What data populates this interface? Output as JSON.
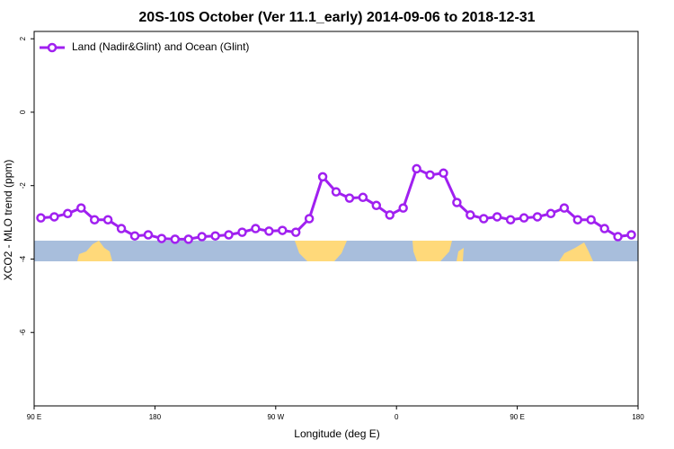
{
  "chart_data": {
    "type": "line",
    "title": "20S-10S October (Ver 11.1_early)   2014-09-06 to 2018-12-31",
    "xlabel": "Longitude (deg E)",
    "ylabel": "XCO2 - MLO trend (ppm)",
    "xlim": [
      90,
      540
    ],
    "xticks": [
      {
        "value": 90,
        "label": "90 E"
      },
      180,
      {
        "value": 270,
        "label": "90 W"
      },
      {
        "value": 360,
        "label": "0"
      },
      {
        "value": 450,
        "label": "90 E"
      },
      {
        "value": 540,
        "label": "180"
      }
    ],
    "ylim": [
      -8,
      2.2
    ],
    "yticks": [
      2,
      0,
      -2,
      -4,
      -6
    ],
    "x": [
      95,
      105,
      115,
      125,
      135,
      145,
      155,
      165,
      175,
      185,
      195,
      205,
      215,
      225,
      235,
      245,
      255,
      265,
      275,
      285,
      295,
      305,
      315,
      325,
      335,
      345,
      355,
      365,
      375,
      385,
      395,
      405,
      415,
      425,
      435,
      445,
      455,
      465,
      475,
      485,
      495,
      505,
      515,
      525,
      535
    ],
    "series": [
      {
        "name": "Land (Nadir&Glint) and Ocean (Glint)",
        "color": "#a020f0",
        "values": [
          -2.88,
          -2.85,
          -2.76,
          -2.61,
          -2.93,
          -2.93,
          -3.17,
          -3.37,
          -3.34,
          -3.44,
          -3.46,
          -3.46,
          -3.39,
          -3.37,
          -3.34,
          -3.27,
          -3.17,
          -3.24,
          -3.22,
          -3.27,
          -2.9,
          -1.76,
          -2.17,
          -2.34,
          -2.32,
          -2.54,
          -2.8,
          -2.61,
          -1.54,
          -1.71,
          -1.66,
          -2.46,
          -2.8,
          -2.9,
          -2.85,
          -2.93,
          -2.88,
          -2.85,
          -2.76,
          -2.61,
          -2.93,
          -2.93,
          -3.17,
          -3.39,
          -3.34
        ]
      }
    ],
    "legend": "top-left"
  }
}
